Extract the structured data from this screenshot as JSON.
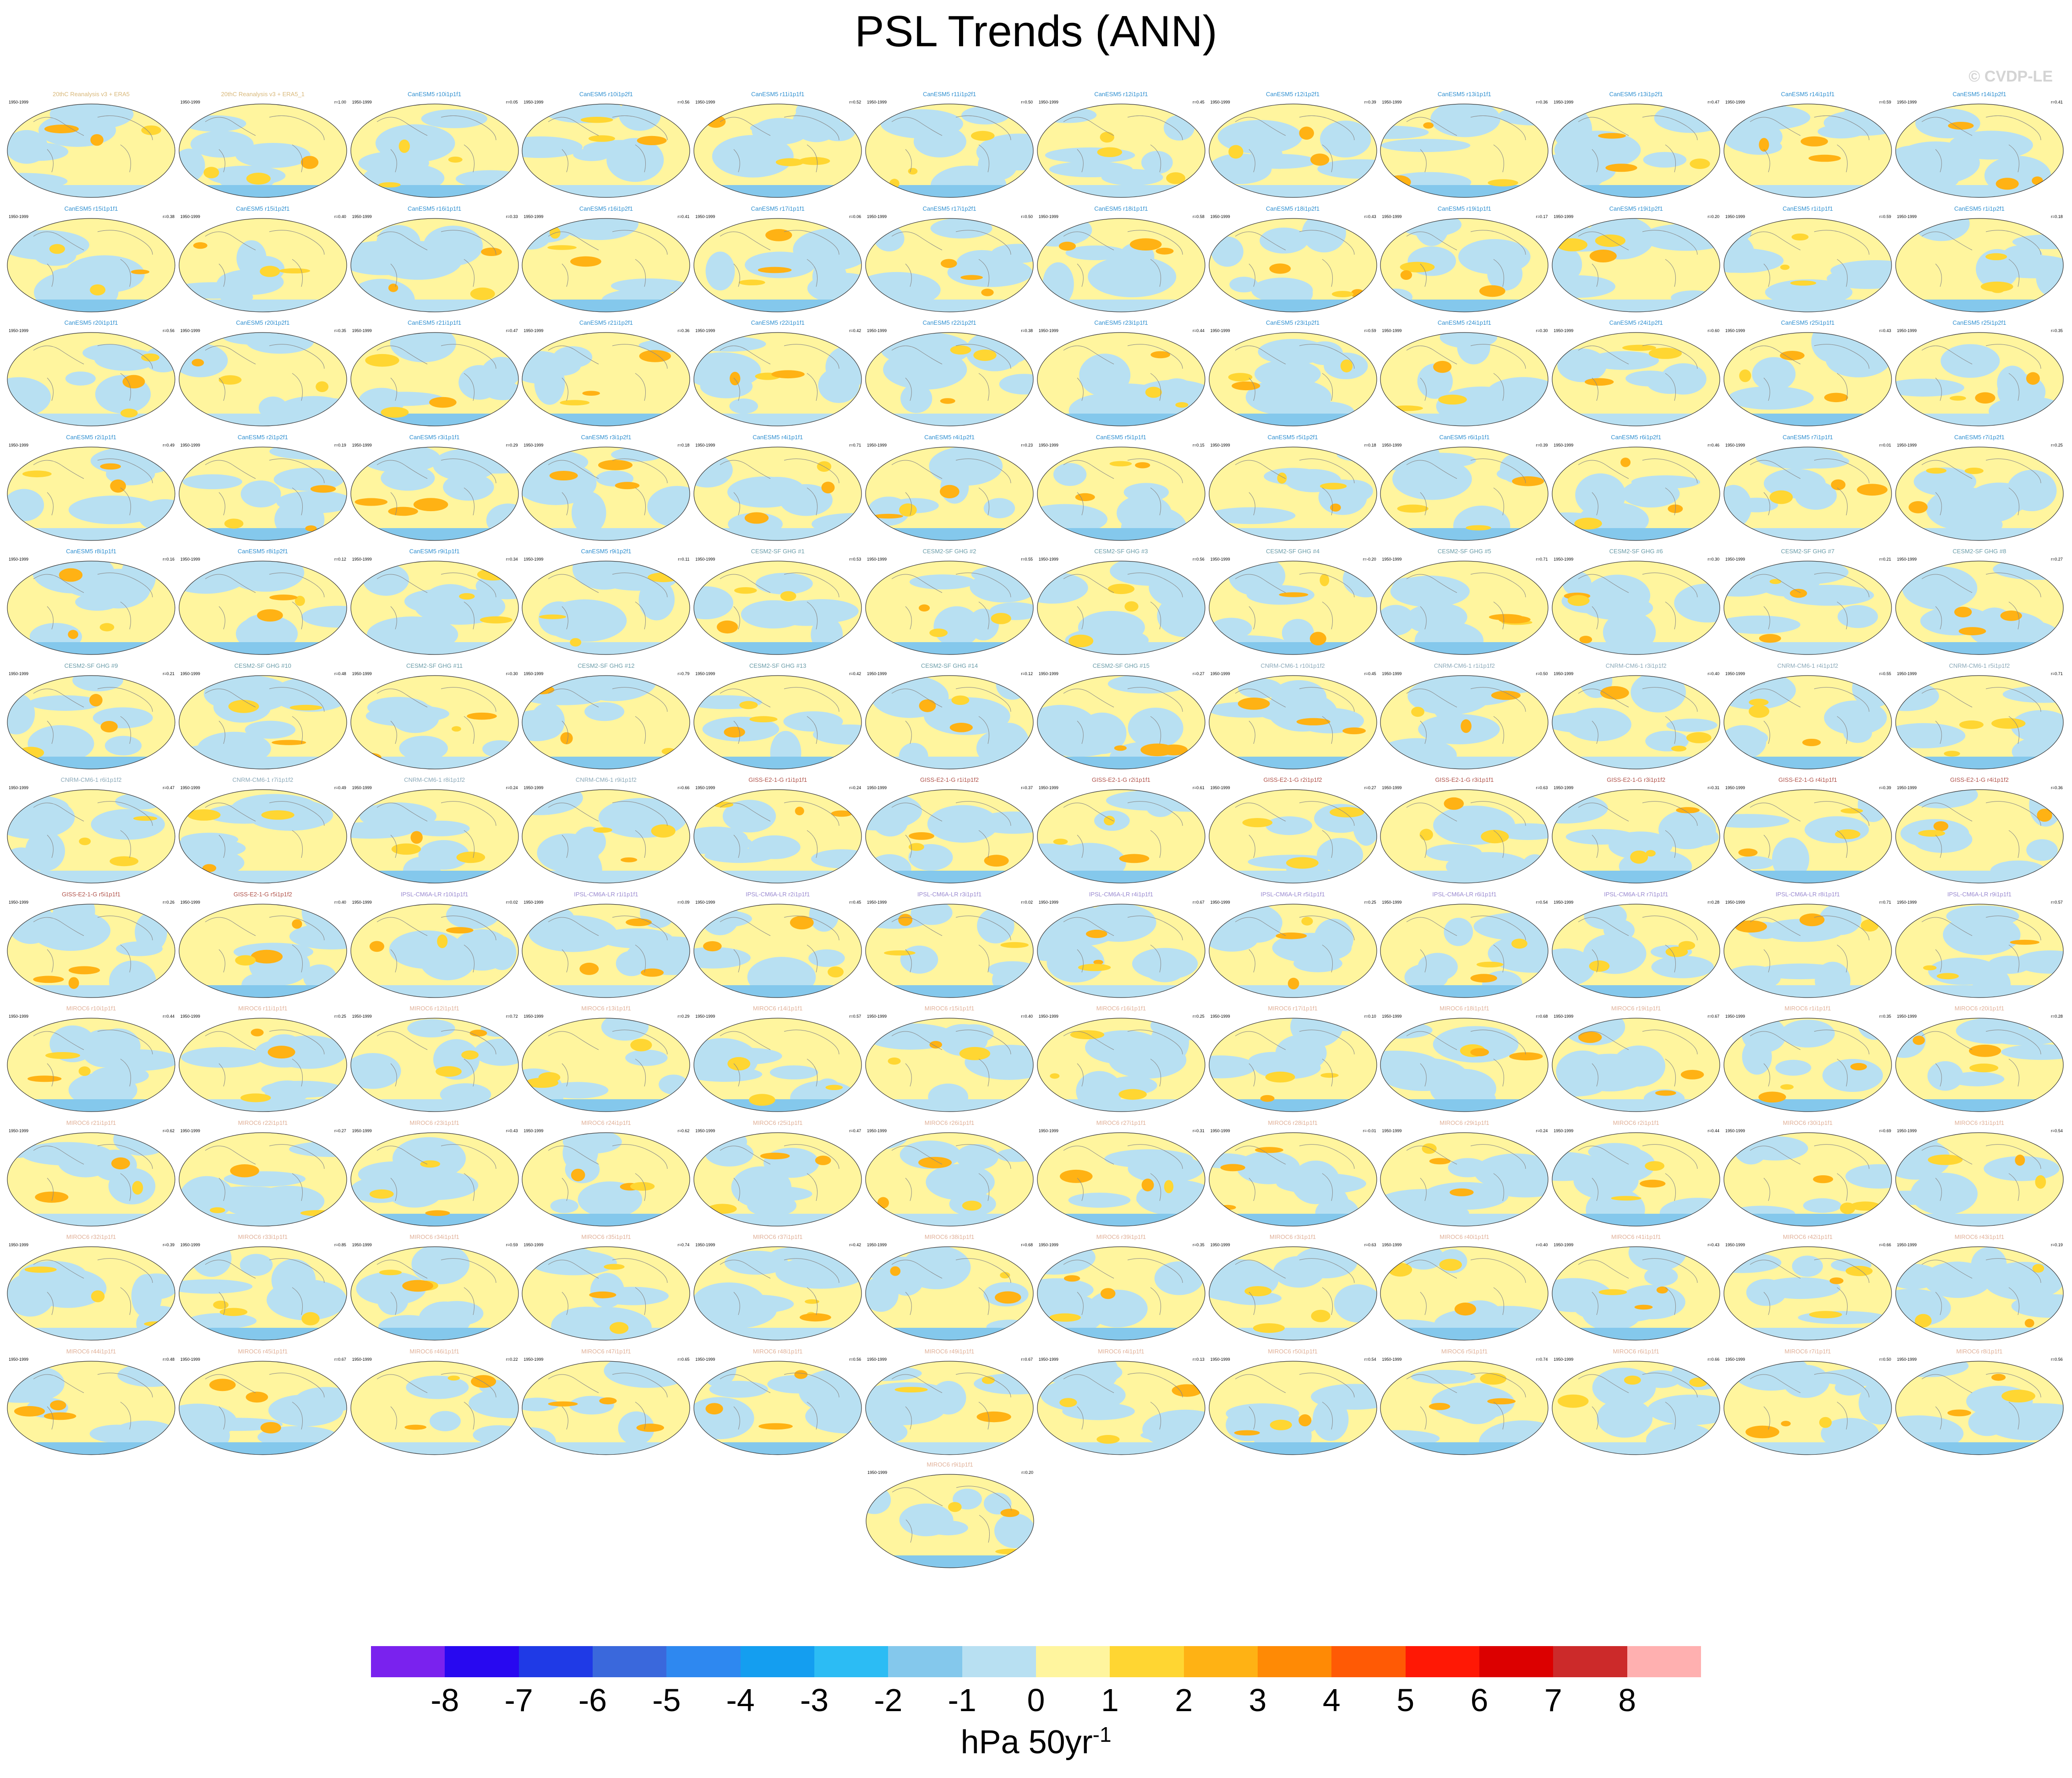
{
  "title": "PSL Trends (ANN)",
  "copyright": "© CVDP-LE",
  "chart_data": {
    "type": "map-panel-grid",
    "variable": "PSL",
    "season": "ANN",
    "period": "1950-1999",
    "panels": [
      {
        "name": "20thC Reanalysis v3 + ERA5",
        "r": "",
        "color": "#d8b87a"
      },
      {
        "name": "20thC Reanalysis v3 + ERA5_1",
        "r": "r=1.00",
        "color": "#d8b87a"
      },
      {
        "name": "CanESM5 r10i1p1f1",
        "r": "r=0.05",
        "color": "#2f8fd0"
      },
      {
        "name": "CanESM5 r10i1p2f1",
        "r": "r=0.56",
        "color": "#2f8fd0"
      },
      {
        "name": "CanESM5 r11i1p1f1",
        "r": "r=0.52",
        "color": "#2f8fd0"
      },
      {
        "name": "CanESM5 r11i1p2f1",
        "r": "r=0.50",
        "color": "#2f8fd0"
      },
      {
        "name": "CanESM5 r12i1p1f1",
        "r": "r=0.45",
        "color": "#2f8fd0"
      },
      {
        "name": "CanESM5 r12i1p2f1",
        "r": "r=0.39",
        "color": "#2f8fd0"
      },
      {
        "name": "CanESM5 r13i1p1f1",
        "r": "r=0.36",
        "color": "#2f8fd0"
      },
      {
        "name": "CanESM5 r13i1p2f1",
        "r": "r=0.47",
        "color": "#2f8fd0"
      },
      {
        "name": "CanESM5 r14i1p1f1",
        "r": "r=0.59",
        "color": "#2f8fd0"
      },
      {
        "name": "CanESM5 r14i1p2f1",
        "r": "r=0.41",
        "color": "#2f8fd0"
      },
      {
        "name": "CanESM5 r15i1p1f1",
        "r": "r=0.38",
        "color": "#2f8fd0"
      },
      {
        "name": "CanESM5 r15i1p2f1",
        "r": "r=0.40",
        "color": "#2f8fd0"
      },
      {
        "name": "CanESM5 r16i1p1f1",
        "r": "r=0.33",
        "color": "#2f8fd0"
      },
      {
        "name": "CanESM5 r16i1p2f1",
        "r": "r=0.41",
        "color": "#2f8fd0"
      },
      {
        "name": "CanESM5 r17i1p1f1",
        "r": "r=0.06",
        "color": "#2f8fd0"
      },
      {
        "name": "CanESM5 r17i1p2f1",
        "r": "r=0.50",
        "color": "#2f8fd0"
      },
      {
        "name": "CanESM5 r18i1p1f1",
        "r": "r=0.58",
        "color": "#2f8fd0"
      },
      {
        "name": "CanESM5 r18i1p2f1",
        "r": "r=0.43",
        "color": "#2f8fd0"
      },
      {
        "name": "CanESM5 r19i1p1f1",
        "r": "r=0.17",
        "color": "#2f8fd0"
      },
      {
        "name": "CanESM5 r19i1p2f1",
        "r": "r=0.20",
        "color": "#2f8fd0"
      },
      {
        "name": "CanESM5 r1i1p1f1",
        "r": "r=0.59",
        "color": "#2f8fd0"
      },
      {
        "name": "CanESM5 r1i1p2f1",
        "r": "r=0.18",
        "color": "#2f8fd0"
      },
      {
        "name": "CanESM5 r20i1p1f1",
        "r": "r=0.56",
        "color": "#2f8fd0"
      },
      {
        "name": "CanESM5 r20i1p2f1",
        "r": "r=0.35",
        "color": "#2f8fd0"
      },
      {
        "name": "CanESM5 r21i1p1f1",
        "r": "r=0.47",
        "color": "#2f8fd0"
      },
      {
        "name": "CanESM5 r21i1p2f1",
        "r": "r=0.36",
        "color": "#2f8fd0"
      },
      {
        "name": "CanESM5 r22i1p1f1",
        "r": "r=0.42",
        "color": "#2f8fd0"
      },
      {
        "name": "CanESM5 r22i1p2f1",
        "r": "r=0.38",
        "color": "#2f8fd0"
      },
      {
        "name": "CanESM5 r23i1p1f1",
        "r": "r=0.44",
        "color": "#2f8fd0"
      },
      {
        "name": "CanESM5 r23i1p2f1",
        "r": "r=0.59",
        "color": "#2f8fd0"
      },
      {
        "name": "CanESM5 r24i1p1f1",
        "r": "r=0.30",
        "color": "#2f8fd0"
      },
      {
        "name": "CanESM5 r24i1p2f1",
        "r": "r=0.60",
        "color": "#2f8fd0"
      },
      {
        "name": "CanESM5 r25i1p1f1",
        "r": "r=0.43",
        "color": "#2f8fd0"
      },
      {
        "name": "CanESM5 r25i1p2f1",
        "r": "r=0.35",
        "color": "#2f8fd0"
      },
      {
        "name": "CanESM5 r2i1p1f1",
        "r": "r=0.49",
        "color": "#2f8fd0"
      },
      {
        "name": "CanESM5 r2i1p2f1",
        "r": "r=0.19",
        "color": "#2f8fd0"
      },
      {
        "name": "CanESM5 r3i1p1f1",
        "r": "r=0.29",
        "color": "#2f8fd0"
      },
      {
        "name": "CanESM5 r3i1p2f1",
        "r": "r=0.18",
        "color": "#2f8fd0"
      },
      {
        "name": "CanESM5 r4i1p1f1",
        "r": "r=0.71",
        "color": "#2f8fd0"
      },
      {
        "name": "CanESM5 r4i1p2f1",
        "r": "r=0.23",
        "color": "#2f8fd0"
      },
      {
        "name": "CanESM5 r5i1p1f1",
        "r": "r=0.15",
        "color": "#2f8fd0"
      },
      {
        "name": "CanESM5 r5i1p2f1",
        "r": "r=0.18",
        "color": "#2f8fd0"
      },
      {
        "name": "CanESM5 r6i1p1f1",
        "r": "r=0.39",
        "color": "#2f8fd0"
      },
      {
        "name": "CanESM5 r6i1p2f1",
        "r": "r=0.46",
        "color": "#2f8fd0"
      },
      {
        "name": "CanESM5 r7i1p1f1",
        "r": "r=0.01",
        "color": "#2f8fd0"
      },
      {
        "name": "CanESM5 r7i1p2f1",
        "r": "r=0.25",
        "color": "#2f8fd0"
      },
      {
        "name": "CanESM5 r8i1p1f1",
        "r": "r=0.16",
        "color": "#2f8fd0"
      },
      {
        "name": "CanESM5 r8i1p2f1",
        "r": "r=0.12",
        "color": "#2f8fd0"
      },
      {
        "name": "CanESM5 r9i1p1f1",
        "r": "r=0.34",
        "color": "#2f8fd0"
      },
      {
        "name": "CanESM5 r9i1p2f1",
        "r": "r=0.11",
        "color": "#2f8fd0"
      },
      {
        "name": "CESM2-SF GHG #1",
        "r": "r=0.53",
        "color": "#6a9ca8"
      },
      {
        "name": "CESM2-SF GHG #2",
        "r": "r=0.55",
        "color": "#6a9ca8"
      },
      {
        "name": "CESM2-SF GHG #3",
        "r": "r=0.56",
        "color": "#6a9ca8"
      },
      {
        "name": "CESM2-SF GHG #4",
        "r": "r=-0.20",
        "color": "#6a9ca8"
      },
      {
        "name": "CESM2-SF GHG #5",
        "r": "r=0.71",
        "color": "#6a9ca8"
      },
      {
        "name": "CESM2-SF GHG #6",
        "r": "r=0.30",
        "color": "#6a9ca8"
      },
      {
        "name": "CESM2-SF GHG #7",
        "r": "r=0.21",
        "color": "#6a9ca8"
      },
      {
        "name": "CESM2-SF GHG #8",
        "r": "r=0.27",
        "color": "#6a9ca8"
      },
      {
        "name": "CESM2-SF GHG #9",
        "r": "r=0.21",
        "color": "#6a9ca8"
      },
      {
        "name": "CESM2-SF GHG #10",
        "r": "r=0.48",
        "color": "#6a9ca8"
      },
      {
        "name": "CESM2-SF GHG #11",
        "r": "r=0.30",
        "color": "#6a9ca8"
      },
      {
        "name": "CESM2-SF GHG #12",
        "r": "r=0.79",
        "color": "#6a9ca8"
      },
      {
        "name": "CESM2-SF GHG #13",
        "r": "r=0.42",
        "color": "#6a9ca8"
      },
      {
        "name": "CESM2-SF GHG #14",
        "r": "r=0.12",
        "color": "#6a9ca8"
      },
      {
        "name": "CESM2-SF GHG #15",
        "r": "r=0.27",
        "color": "#6a9ca8"
      },
      {
        "name": "CNRM-CM6-1 r10i1p1f2",
        "r": "r=0.45",
        "color": "#8aa8b8"
      },
      {
        "name": "CNRM-CM6-1 r1i1p1f2",
        "r": "r=0.50",
        "color": "#8aa8b8"
      },
      {
        "name": "CNRM-CM6-1 r3i1p1f2",
        "r": "r=0.40",
        "color": "#8aa8b8"
      },
      {
        "name": "CNRM-CM6-1 r4i1p1f2",
        "r": "r=0.55",
        "color": "#8aa8b8"
      },
      {
        "name": "CNRM-CM6-1 r5i1p1f2",
        "r": "r=0.71",
        "color": "#8aa8b8"
      },
      {
        "name": "CNRM-CM6-1 r6i1p1f2",
        "r": "r=0.47",
        "color": "#8aa8b8"
      },
      {
        "name": "CNRM-CM6-1 r7i1p1f2",
        "r": "r=0.49",
        "color": "#8aa8b8"
      },
      {
        "name": "CNRM-CM6-1 r8i1p1f2",
        "r": "r=0.24",
        "color": "#8aa8b8"
      },
      {
        "name": "CNRM-CM6-1 r9i1p1f2",
        "r": "r=0.66",
        "color": "#8aa8b8"
      },
      {
        "name": "GISS-E2-1-G r1i1p1f1",
        "r": "r=0.24",
        "color": "#b0524a"
      },
      {
        "name": "GISS-E2-1-G r1i1p1f2",
        "r": "r=0.37",
        "color": "#b0524a"
      },
      {
        "name": "GISS-E2-1-G r2i1p1f1",
        "r": "r=0.61",
        "color": "#b0524a"
      },
      {
        "name": "GISS-E2-1-G r2i1p1f2",
        "r": "r=0.27",
        "color": "#b0524a"
      },
      {
        "name": "GISS-E2-1-G r3i1p1f1",
        "r": "r=0.63",
        "color": "#b0524a"
      },
      {
        "name": "GISS-E2-1-G r3i1p1f2",
        "r": "r=0.31",
        "color": "#b0524a"
      },
      {
        "name": "GISS-E2-1-G r4i1p1f1",
        "r": "r=0.39",
        "color": "#b0524a"
      },
      {
        "name": "GISS-E2-1-G r4i1p1f2",
        "r": "r=0.36",
        "color": "#b0524a"
      },
      {
        "name": "GISS-E2-1-G r5i1p1f1",
        "r": "r=0.26",
        "color": "#b0524a"
      },
      {
        "name": "GISS-E2-1-G r5i1p1f2",
        "r": "r=0.40",
        "color": "#b0524a"
      },
      {
        "name": "IPSL-CM6A-LR r10i1p1f1",
        "r": "r=0.02",
        "color": "#9a8ad0"
      },
      {
        "name": "IPSL-CM6A-LR r1i1p1f1",
        "r": "r=0.09",
        "color": "#9a8ad0"
      },
      {
        "name": "IPSL-CM6A-LR r2i1p1f1",
        "r": "r=0.45",
        "color": "#9a8ad0"
      },
      {
        "name": "IPSL-CM6A-LR r3i1p1f1",
        "r": "r=0.02",
        "color": "#9a8ad0"
      },
      {
        "name": "IPSL-CM6A-LR r4i1p1f1",
        "r": "r=0.67",
        "color": "#9a8ad0"
      },
      {
        "name": "IPSL-CM6A-LR r5i1p1f1",
        "r": "r=0.25",
        "color": "#9a8ad0"
      },
      {
        "name": "IPSL-CM6A-LR r6i1p1f1",
        "r": "r=0.54",
        "color": "#9a8ad0"
      },
      {
        "name": "IPSL-CM6A-LR r7i1p1f1",
        "r": "r=0.28",
        "color": "#9a8ad0"
      },
      {
        "name": "IPSL-CM6A-LR r8i1p1f1",
        "r": "r=0.71",
        "color": "#9a8ad0"
      },
      {
        "name": "IPSL-CM6A-LR r9i1p1f1",
        "r": "r=0.57",
        "color": "#9a8ad0"
      },
      {
        "name": "MIROC6 r10i1p1f1",
        "r": "r=0.44",
        "color": "#e0b098"
      },
      {
        "name": "MIROC6 r11i1p1f1",
        "r": "r=0.25",
        "color": "#e0b098"
      },
      {
        "name": "MIROC6 r12i1p1f1",
        "r": "r=0.72",
        "color": "#e0b098"
      },
      {
        "name": "MIROC6 r13i1p1f1",
        "r": "r=0.29",
        "color": "#e0b098"
      },
      {
        "name": "MIROC6 r14i1p1f1",
        "r": "r=0.57",
        "color": "#e0b098"
      },
      {
        "name": "MIROC6 r15i1p1f1",
        "r": "r=0.40",
        "color": "#e0b098"
      },
      {
        "name": "MIROC6 r16i1p1f1",
        "r": "r=0.25",
        "color": "#e0b098"
      },
      {
        "name": "MIROC6 r17i1p1f1",
        "r": "r=0.10",
        "color": "#e0b098"
      },
      {
        "name": "MIROC6 r18i1p1f1",
        "r": "r=0.68",
        "color": "#e0b098"
      },
      {
        "name": "MIROC6 r19i1p1f1",
        "r": "r=0.67",
        "color": "#e0b098"
      },
      {
        "name": "MIROC6 r1i1p1f1",
        "r": "r=0.35",
        "color": "#e0b098"
      },
      {
        "name": "MIROC6 r20i1p1f1",
        "r": "r=0.28",
        "color": "#e0b098"
      },
      {
        "name": "MIROC6 r21i1p1f1",
        "r": "r=0.62",
        "color": "#e0b098"
      },
      {
        "name": "MIROC6 r22i1p1f1",
        "r": "r=0.27",
        "color": "#e0b098"
      },
      {
        "name": "MIROC6 r23i1p1f1",
        "r": "r=0.43",
        "color": "#e0b098"
      },
      {
        "name": "MIROC6 r24i1p1f1",
        "r": "r=0.62",
        "color": "#e0b098"
      },
      {
        "name": "MIROC6 r25i1p1f1",
        "r": "r=0.47",
        "color": "#e0b098"
      },
      {
        "name": "MIROC6 r26i1p1f1",
        "r": "",
        "color": "#e0b098"
      },
      {
        "name": "MIROC6 r27i1p1f1",
        "r": "r=0.31",
        "color": "#e0b098"
      },
      {
        "name": "MIROC6 r28i1p1f1",
        "r": "r=-0.01",
        "color": "#e0b098"
      },
      {
        "name": "MIROC6 r29i1p1f1",
        "r": "r=0.24",
        "color": "#e0b098"
      },
      {
        "name": "MIROC6 r2i1p1f1",
        "r": "r=0.44",
        "color": "#e0b098"
      },
      {
        "name": "MIROC6 r30i1p1f1",
        "r": "r=0.69",
        "color": "#e0b098"
      },
      {
        "name": "MIROC6 r31i1p1f1",
        "r": "r=0.54",
        "color": "#e0b098"
      },
      {
        "name": "MIROC6 r32i1p1f1",
        "r": "r=0.39",
        "color": "#e0b098"
      },
      {
        "name": "MIROC6 r33i1p1f1",
        "r": "r=0.85",
        "color": "#e0b098"
      },
      {
        "name": "MIROC6 r34i1p1f1",
        "r": "r=0.59",
        "color": "#e0b098"
      },
      {
        "name": "MIROC6 r35i1p1f1",
        "r": "r=0.74",
        "color": "#e0b098"
      },
      {
        "name": "MIROC6 r37i1p1f1",
        "r": "r=0.42",
        "color": "#e0b098"
      },
      {
        "name": "MIROC6 r38i1p1f1",
        "r": "r=0.68",
        "color": "#e0b098"
      },
      {
        "name": "MIROC6 r39i1p1f1",
        "r": "r=0.35",
        "color": "#e0b098"
      },
      {
        "name": "MIROC6 r3i1p1f1",
        "r": "r=0.63",
        "color": "#e0b098"
      },
      {
        "name": "MIROC6 r40i1p1f1",
        "r": "r=0.40",
        "color": "#e0b098"
      },
      {
        "name": "MIROC6 r41i1p1f1",
        "r": "r=0.43",
        "color": "#e0b098"
      },
      {
        "name": "MIROC6 r42i1p1f1",
        "r": "r=0.66",
        "color": "#e0b098"
      },
      {
        "name": "MIROC6 r43i1p1f1",
        "r": "r=0.19",
        "color": "#e0b098"
      },
      {
        "name": "MIROC6 r44i1p1f1",
        "r": "r=0.48",
        "color": "#e0b098"
      },
      {
        "name": "MIROC6 r45i1p1f1",
        "r": "r=0.67",
        "color": "#e0b098"
      },
      {
        "name": "MIROC6 r46i1p1f1",
        "r": "r=0.22",
        "color": "#e0b098"
      },
      {
        "name": "MIROC6 r47i1p1f1",
        "r": "r=0.65",
        "color": "#e0b098"
      },
      {
        "name": "MIROC6 r48i1p1f1",
        "r": "r=0.56",
        "color": "#e0b098"
      },
      {
        "name": "MIROC6 r49i1p1f1",
        "r": "r=0.67",
        "color": "#e0b098"
      },
      {
        "name": "MIROC6 r4i1p1f1",
        "r": "r=0.13",
        "color": "#e0b098"
      },
      {
        "name": "MIROC6 r50i1p1f1",
        "r": "r=0.54",
        "color": "#e0b098"
      },
      {
        "name": "MIROC6 r5i1p1f1",
        "r": "r=0.74",
        "color": "#e0b098"
      },
      {
        "name": "MIROC6 r6i1p1f1",
        "r": "r=0.66",
        "color": "#e0b098"
      },
      {
        "name": "MIROC6 r7i1p1f1",
        "r": "r=0.50",
        "color": "#e0b098"
      },
      {
        "name": "MIROC6 r8i1p1f1",
        "r": "r=0.56",
        "color": "#e0b098"
      },
      {
        "name": "MIROC6 r9i1p1f1",
        "r": "r=0.20",
        "color": "#e0b098"
      }
    ],
    "colorbar": {
      "labels": [
        "-8",
        "-7",
        "-6",
        "-5",
        "-4",
        "-3",
        "-2",
        "-1",
        "0",
        "1",
        "2",
        "3",
        "4",
        "5",
        "6",
        "7",
        "8"
      ],
      "colors": [
        "#7a22ee",
        "#2808f0",
        "#1f3ae6",
        "#3a68dc",
        "#2e88f0",
        "#149ef0",
        "#2cbcf4",
        "#84c8ec",
        "#b8e0f2",
        "#fff59e",
        "#ffd632",
        "#ffb214",
        "#ff8a05",
        "#ff5a05",
        "#ff1805",
        "#dc0000",
        "#cc2a2a",
        "#ffb0b0"
      ],
      "unit_main": "hPa 50yr",
      "unit_sup": "-1"
    }
  }
}
